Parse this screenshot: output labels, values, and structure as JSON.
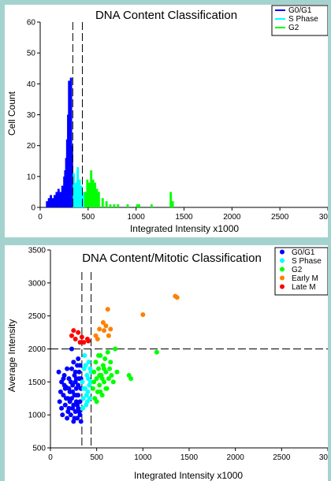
{
  "chart_data": [
    {
      "type": "bar",
      "title": "DNA Content Classification",
      "xlabel": "Integrated Intensity x1000",
      "ylabel": "Cell Count",
      "xlim": [
        0,
        3000
      ],
      "ylim": [
        0,
        60
      ],
      "xticks": [
        "0",
        "500",
        "1000",
        "1500",
        "2000",
        "2500",
        "3000"
      ],
      "yticks": [
        "0",
        "10",
        "20",
        "30",
        "40",
        "50",
        "60"
      ],
      "legend": {
        "placement": "top-right",
        "entries": [
          "G0/G1",
          "S Phase",
          "G2"
        ]
      },
      "vlines": [
        340,
        440
      ],
      "series": [
        {
          "name": "G0/G1",
          "color": "#0000ff",
          "bins": [
            [
              60,
              2
            ],
            [
              80,
              3
            ],
            [
              100,
              4
            ],
            [
              120,
              3
            ],
            [
              140,
              4
            ],
            [
              160,
              5
            ],
            [
              180,
              6
            ],
            [
              200,
              5
            ],
            [
              220,
              7
            ],
            [
              240,
              10
            ],
            [
              250,
              12
            ],
            [
              260,
              16
            ],
            [
              270,
              22
            ],
            [
              280,
              30
            ],
            [
              290,
              41
            ],
            [
              300,
              27
            ],
            [
              310,
              42
            ],
            [
              320,
              20
            ]
          ]
        },
        {
          "name": "S Phase",
          "color": "#00ffff",
          "bins": [
            [
              340,
              11
            ],
            [
              360,
              8
            ],
            [
              380,
              13
            ],
            [
              400,
              9
            ],
            [
              420,
              7
            ],
            [
              440,
              5
            ]
          ]
        },
        {
          "name": "G2",
          "color": "#00ff00",
          "bins": [
            [
              460,
              5
            ],
            [
              480,
              9
            ],
            [
              500,
              8
            ],
            [
              520,
              12
            ],
            [
              540,
              9
            ],
            [
              560,
              8
            ],
            [
              580,
              6
            ],
            [
              600,
              5
            ],
            [
              640,
              3
            ],
            [
              680,
              2
            ],
            [
              720,
              1
            ],
            [
              760,
              1
            ],
            [
              800,
              1
            ],
            [
              900,
              1
            ],
            [
              1000,
              1
            ],
            [
              1020,
              1
            ],
            [
              1150,
              1
            ],
            [
              1350,
              5
            ],
            [
              1370,
              2
            ]
          ]
        }
      ]
    },
    {
      "type": "scatter",
      "title": "DNA Content/Mitotic Classification",
      "xlabel": "Integrated Intensity x1000",
      "ylabel": "Average Intensity",
      "xlim": [
        0,
        3000
      ],
      "ylim": [
        500,
        3500
      ],
      "xticks": [
        "0",
        "500",
        "1000",
        "1500",
        "2000",
        "2500",
        "3000"
      ],
      "yticks": [
        "500",
        "1000",
        "1500",
        "2000",
        "2500",
        "3000",
        "3500"
      ],
      "legend": {
        "placement": "top-right",
        "entries": [
          "G0/G1",
          "S Phase",
          "G2",
          "Early M",
          "Late M"
        ]
      },
      "vlines": [
        340,
        440
      ],
      "hline": 2000,
      "series": [
        {
          "name": "G0/G1",
          "color": "#0000ff",
          "points": [
            [
              90,
              1650
            ],
            [
              100,
              1200
            ],
            [
              110,
              1350
            ],
            [
              120,
              1500
            ],
            [
              130,
              1000
            ],
            [
              140,
              1300
            ],
            [
              150,
              1600
            ],
            [
              160,
              1150
            ],
            [
              170,
              1420
            ],
            [
              180,
              950
            ],
            [
              190,
              1250
            ],
            [
              200,
              1550
            ],
            [
              200,
              1100
            ],
            [
              210,
              1350
            ],
            [
              220,
              1000
            ],
            [
              230,
              1700
            ],
            [
              230,
              1250
            ],
            [
              240,
              1450
            ],
            [
              250,
              900
            ],
            [
              250,
              1150
            ],
            [
              260,
              1600
            ],
            [
              260,
              1300
            ],
            [
              270,
              1050
            ],
            [
              270,
              1500
            ],
            [
              280,
              1400
            ],
            [
              280,
              1200
            ],
            [
              290,
              950
            ],
            [
              290,
              1750
            ],
            [
              300,
              1300
            ],
            [
              300,
              1100
            ],
            [
              310,
              1550
            ],
            [
              310,
              1650
            ],
            [
              320,
              1200
            ],
            [
              320,
              1000
            ],
            [
              330,
              1400
            ],
            [
              330,
              900
            ],
            [
              150,
              1450
            ],
            [
              180,
              1700
            ],
            [
              210,
              1200
            ],
            [
              240,
              1350
            ],
            [
              270,
              1650
            ],
            [
              300,
              1450
            ],
            [
              120,
              1100
            ],
            [
              160,
              1400
            ],
            [
              190,
              1050
            ],
            [
              220,
              1500
            ],
            [
              250,
              1800
            ],
            [
              280,
              1300
            ],
            [
              310,
              1050
            ],
            [
              330,
              1550
            ],
            [
              230,
              2000
            ],
            [
              260,
              950
            ],
            [
              290,
              1150
            ],
            [
              170,
              1250
            ],
            [
              140,
              1550
            ],
            [
              200,
              1400
            ],
            [
              320,
              1750
            ],
            [
              240,
              1100
            ],
            [
              280,
              1550
            ],
            [
              300,
              1850
            ]
          ]
        },
        {
          "name": "S Phase",
          "color": "#00ffff",
          "points": [
            [
              345,
              1500
            ],
            [
              355,
              1250
            ],
            [
              365,
              1700
            ],
            [
              375,
              1400
            ],
            [
              385,
              1150
            ],
            [
              395,
              1600
            ],
            [
              405,
              1350
            ],
            [
              415,
              1800
            ],
            [
              425,
              1250
            ],
            [
              435,
              1500
            ],
            [
              350,
              1100
            ],
            [
              370,
              1900
            ],
            [
              390,
              1300
            ],
            [
              410,
              1550
            ],
            [
              430,
              1700
            ],
            [
              360,
              1400
            ],
            [
              380,
              1750
            ],
            [
              400,
              1200
            ],
            [
              420,
              1450
            ],
            [
              440,
              1650
            ]
          ]
        },
        {
          "name": "G2",
          "color": "#00ff00",
          "points": [
            [
              460,
              1400
            ],
            [
              470,
              1650
            ],
            [
              480,
              1250
            ],
            [
              490,
              1800
            ],
            [
              500,
              1550
            ],
            [
              510,
              1350
            ],
            [
              520,
              1700
            ],
            [
              530,
              1450
            ],
            [
              540,
              1900
            ],
            [
              550,
              1600
            ],
            [
              560,
              1300
            ],
            [
              570,
              1750
            ],
            [
              580,
              1500
            ],
            [
              590,
              1850
            ],
            [
              600,
              1650
            ],
            [
              610,
              1400
            ],
            [
              620,
              1950
            ],
            [
              630,
              1550
            ],
            [
              640,
              1700
            ],
            [
              650,
              1800
            ],
            [
              660,
              1600
            ],
            [
              680,
              1500
            ],
            [
              700,
              2000
            ],
            [
              720,
              1650
            ],
            [
              500,
              1200
            ],
            [
              530,
              1600
            ],
            [
              560,
              1550
            ],
            [
              600,
              1400
            ],
            [
              470,
              1500
            ],
            [
              520,
              1900
            ],
            [
              850,
              1600
            ],
            [
              870,
              1550
            ],
            [
              1150,
              1950
            ],
            [
              540,
              1350
            ],
            [
              580,
              1700
            ]
          ]
        },
        {
          "name": "Early M",
          "color": "#ff8000",
          "points": [
            [
              490,
              2200
            ],
            [
              510,
              2150
            ],
            [
              530,
              2300
            ],
            [
              570,
              2400
            ],
            [
              580,
              2280
            ],
            [
              600,
              2350
            ],
            [
              620,
              2600
            ],
            [
              630,
              2200
            ],
            [
              650,
              2300
            ],
            [
              1000,
              2520
            ],
            [
              1350,
              2800
            ],
            [
              1370,
              2780
            ]
          ]
        },
        {
          "name": "Late M",
          "color": "#ff0000",
          "points": [
            [
              230,
              2200
            ],
            [
              250,
              2280
            ],
            [
              270,
              2150
            ],
            [
              300,
              2250
            ],
            [
              320,
              2100
            ],
            [
              340,
              2180
            ],
            [
              360,
              2100
            ],
            [
              400,
              2150
            ],
            [
              410,
              2120
            ]
          ]
        }
      ]
    }
  ]
}
